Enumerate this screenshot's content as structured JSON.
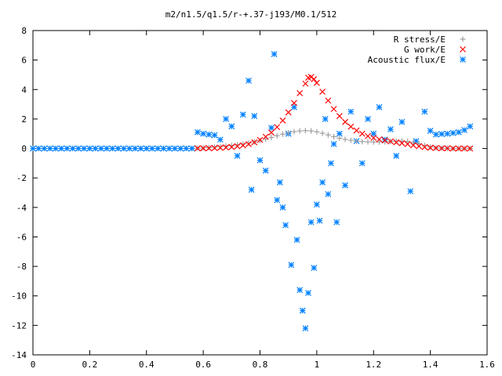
{
  "chart_data": {
    "type": "scatter",
    "title": "m2/n1.5/q1.5/r-+.37-j193/M0.1/512",
    "xlabel": "",
    "ylabel": "",
    "xlim": [
      0,
      1.6
    ],
    "ylim": [
      -14,
      8
    ],
    "x_ticks": [
      "0",
      "0.2",
      "0.4",
      "0.6",
      "0.8",
      "1",
      "1.2",
      "1.4",
      "1.6"
    ],
    "y_ticks": [
      "8",
      "6",
      "4",
      "2",
      "0",
      "-2",
      "-4",
      "-6",
      "-8",
      "-10",
      "-12",
      "-14"
    ],
    "grid": false,
    "legend_position": "top-right",
    "series": [
      {
        "name": "R stress/E",
        "color": "#a0a0a0",
        "marker": "plus",
        "points": [
          [
            0.58,
            0.02
          ],
          [
            0.6,
            0.04
          ],
          [
            0.62,
            0.06
          ],
          [
            0.64,
            0.09
          ],
          [
            0.66,
            0.12
          ],
          [
            0.68,
            0.16
          ],
          [
            0.7,
            0.2
          ],
          [
            0.72,
            0.25
          ],
          [
            0.74,
            0.3
          ],
          [
            0.76,
            0.37
          ],
          [
            0.78,
            0.45
          ],
          [
            0.8,
            0.54
          ],
          [
            0.82,
            0.64
          ],
          [
            0.84,
            0.75
          ],
          [
            0.86,
            0.86
          ],
          [
            0.88,
            0.97
          ],
          [
            0.9,
            1.06
          ],
          [
            0.92,
            1.14
          ],
          [
            0.94,
            1.19
          ],
          [
            0.96,
            1.21
          ],
          [
            0.98,
            1.19
          ],
          [
            1.0,
            1.13
          ],
          [
            1.02,
            1.03
          ],
          [
            1.04,
            0.92
          ],
          [
            1.06,
            0.8
          ],
          [
            1.08,
            0.7
          ],
          [
            1.1,
            0.62
          ],
          [
            1.12,
            0.55
          ],
          [
            1.14,
            0.5
          ],
          [
            1.16,
            0.47
          ],
          [
            1.18,
            0.45
          ],
          [
            1.2,
            0.44
          ],
          [
            1.22,
            0.44
          ],
          [
            1.24,
            0.45
          ],
          [
            1.26,
            0.47
          ],
          [
            1.28,
            0.49
          ],
          [
            1.3,
            0.5
          ],
          [
            1.32,
            0.48
          ],
          [
            1.34,
            0.42
          ],
          [
            1.36,
            0.32
          ],
          [
            1.38,
            0.2
          ],
          [
            1.4,
            0.1
          ],
          [
            1.42,
            0.04
          ],
          [
            1.44,
            0.02
          ],
          [
            1.46,
            0.01
          ],
          [
            1.48,
            0.0
          ],
          [
            1.5,
            0.0
          ],
          [
            1.52,
            0.0
          ],
          [
            1.54,
            0.0
          ]
        ]
      },
      {
        "name": "G work/E",
        "color": "#ff0000",
        "marker": "x",
        "points": [
          [
            0.58,
            0.01
          ],
          [
            0.6,
            0.01
          ],
          [
            0.62,
            0.02
          ],
          [
            0.64,
            0.03
          ],
          [
            0.66,
            0.05
          ],
          [
            0.68,
            0.07
          ],
          [
            0.7,
            0.1
          ],
          [
            0.72,
            0.15
          ],
          [
            0.74,
            0.21
          ],
          [
            0.76,
            0.3
          ],
          [
            0.78,
            0.42
          ],
          [
            0.8,
            0.58
          ],
          [
            0.82,
            0.8
          ],
          [
            0.84,
            1.08
          ],
          [
            0.86,
            1.45
          ],
          [
            0.88,
            1.9
          ],
          [
            0.9,
            2.45
          ],
          [
            0.92,
            3.08
          ],
          [
            0.94,
            3.75
          ],
          [
            0.96,
            4.4
          ],
          [
            0.97,
            4.8
          ],
          [
            0.98,
            4.85
          ],
          [
            0.99,
            4.7
          ],
          [
            1.0,
            4.45
          ],
          [
            1.02,
            3.85
          ],
          [
            1.04,
            3.25
          ],
          [
            1.06,
            2.68
          ],
          [
            1.08,
            2.2
          ],
          [
            1.1,
            1.8
          ],
          [
            1.12,
            1.48
          ],
          [
            1.14,
            1.22
          ],
          [
            1.16,
            1.0
          ],
          [
            1.18,
            0.84
          ],
          [
            1.2,
            0.72
          ],
          [
            1.22,
            0.62
          ],
          [
            1.24,
            0.55
          ],
          [
            1.26,
            0.48
          ],
          [
            1.28,
            0.42
          ],
          [
            1.3,
            0.36
          ],
          [
            1.32,
            0.3
          ],
          [
            1.34,
            0.22
          ],
          [
            1.36,
            0.15
          ],
          [
            1.38,
            0.09
          ],
          [
            1.4,
            0.05
          ],
          [
            1.42,
            0.03
          ],
          [
            1.44,
            0.01
          ],
          [
            1.46,
            0.01
          ],
          [
            1.48,
            0.0
          ],
          [
            1.5,
            0.0
          ],
          [
            1.52,
            0.0
          ],
          [
            1.54,
            0.0
          ]
        ]
      },
      {
        "name": "Acoustic flux/E",
        "color": "#0080ff",
        "marker": "star",
        "points": [
          [
            0.0,
            0.0
          ],
          [
            0.02,
            0.0
          ],
          [
            0.04,
            0.0
          ],
          [
            0.06,
            0.0
          ],
          [
            0.08,
            0.0
          ],
          [
            0.1,
            0.0
          ],
          [
            0.12,
            0.0
          ],
          [
            0.14,
            0.0
          ],
          [
            0.16,
            0.0
          ],
          [
            0.18,
            0.0
          ],
          [
            0.2,
            0.0
          ],
          [
            0.22,
            0.0
          ],
          [
            0.24,
            0.0
          ],
          [
            0.26,
            0.0
          ],
          [
            0.28,
            0.0
          ],
          [
            0.3,
            0.0
          ],
          [
            0.32,
            0.0
          ],
          [
            0.34,
            0.0
          ],
          [
            0.36,
            0.0
          ],
          [
            0.38,
            0.0
          ],
          [
            0.4,
            0.0
          ],
          [
            0.42,
            0.0
          ],
          [
            0.44,
            0.0
          ],
          [
            0.46,
            0.0
          ],
          [
            0.48,
            0.0
          ],
          [
            0.5,
            0.0
          ],
          [
            0.52,
            0.0
          ],
          [
            0.54,
            0.0
          ],
          [
            0.56,
            0.0
          ],
          [
            0.58,
            1.1
          ],
          [
            0.6,
            1.0
          ],
          [
            0.62,
            0.95
          ],
          [
            0.64,
            0.9
          ],
          [
            0.66,
            0.6
          ],
          [
            0.68,
            2.0
          ],
          [
            0.7,
            1.5
          ],
          [
            0.72,
            -0.5
          ],
          [
            0.74,
            2.3
          ],
          [
            0.76,
            4.6
          ],
          [
            0.77,
            -2.8
          ],
          [
            0.78,
            2.2
          ],
          [
            0.8,
            -0.8
          ],
          [
            0.82,
            -1.5
          ],
          [
            0.84,
            1.4
          ],
          [
            0.85,
            6.4
          ],
          [
            0.86,
            -3.5
          ],
          [
            0.87,
            -2.3
          ],
          [
            0.88,
            -4.0
          ],
          [
            0.89,
            -5.2
          ],
          [
            0.9,
            1.0
          ],
          [
            0.91,
            -7.9
          ],
          [
            0.92,
            2.8
          ],
          [
            0.93,
            -6.2
          ],
          [
            0.94,
            -9.6
          ],
          [
            0.95,
            -11.0
          ],
          [
            0.96,
            -12.2
          ],
          [
            0.97,
            -9.8
          ],
          [
            0.98,
            -5.0
          ],
          [
            0.99,
            -8.1
          ],
          [
            1.0,
            -3.8
          ],
          [
            1.01,
            -4.9
          ],
          [
            1.02,
            -2.3
          ],
          [
            1.03,
            2.0
          ],
          [
            1.04,
            -3.1
          ],
          [
            1.05,
            -1.0
          ],
          [
            1.06,
            0.3
          ],
          [
            1.07,
            -5.0
          ],
          [
            1.08,
            1.0
          ],
          [
            1.1,
            -2.5
          ],
          [
            1.12,
            2.5
          ],
          [
            1.14,
            0.5
          ],
          [
            1.16,
            -1.0
          ],
          [
            1.18,
            2.0
          ],
          [
            1.2,
            1.0
          ],
          [
            1.22,
            2.8
          ],
          [
            1.24,
            0.6
          ],
          [
            1.26,
            1.3
          ],
          [
            1.28,
            -0.5
          ],
          [
            1.3,
            1.8
          ],
          [
            1.33,
            -2.9
          ],
          [
            1.35,
            0.5
          ],
          [
            1.38,
            2.5
          ],
          [
            1.4,
            1.2
          ],
          [
            1.42,
            0.95
          ],
          [
            1.44,
            0.98
          ],
          [
            1.46,
            1.0
          ],
          [
            1.48,
            1.05
          ],
          [
            1.5,
            1.1
          ],
          [
            1.52,
            1.25
          ],
          [
            1.54,
            1.5
          ]
        ]
      }
    ]
  }
}
